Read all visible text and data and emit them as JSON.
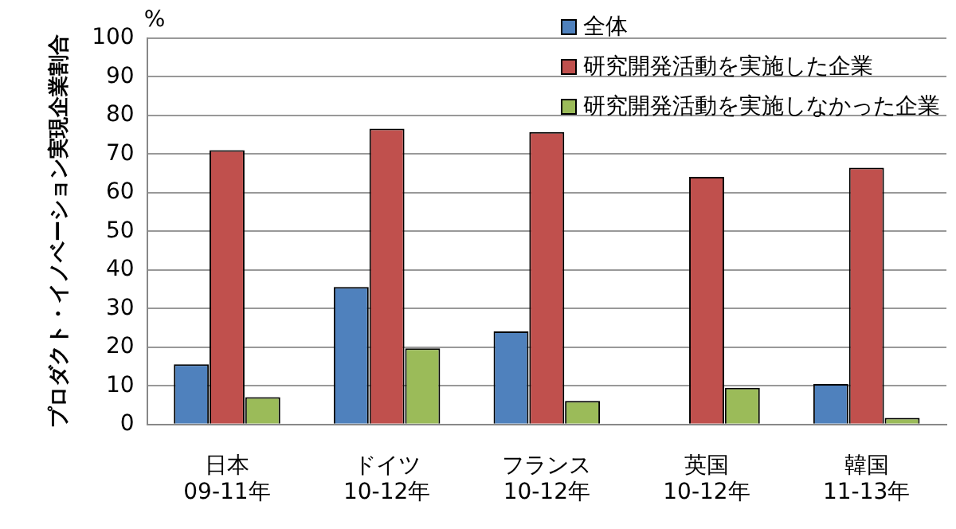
{
  "chart_data": {
    "type": "bar",
    "ylabel": "プロダクト・イノベーション実現企業割合",
    "annotations": [
      "%"
    ],
    "categories": [
      "日本\n09-11年",
      "ドイツ\n10-12年",
      "フランス\n10-12年",
      "英国\n10-12年",
      "韓国\n11-13年"
    ],
    "series": [
      {
        "name": "全体",
        "color": "#4f81bd",
        "values": [
          15.6,
          35.6,
          24.1,
          null,
          10.5
        ]
      },
      {
        "name": "研究開発活動を実施した企業",
        "color": "#c0504d",
        "values": [
          71.0,
          76.6,
          75.7,
          64.1,
          66.5
        ]
      },
      {
        "name": "研究開発活動を実施しなかった企業",
        "color": "#9bbb59",
        "values": [
          7.1,
          19.7,
          6.1,
          9.5,
          1.7
        ]
      }
    ],
    "ylim": [
      0,
      100
    ],
    "yticks": [
      0,
      10,
      20,
      30,
      40,
      50,
      60,
      70,
      80,
      90,
      100
    ],
    "grid": "y",
    "legend": "top right"
  }
}
